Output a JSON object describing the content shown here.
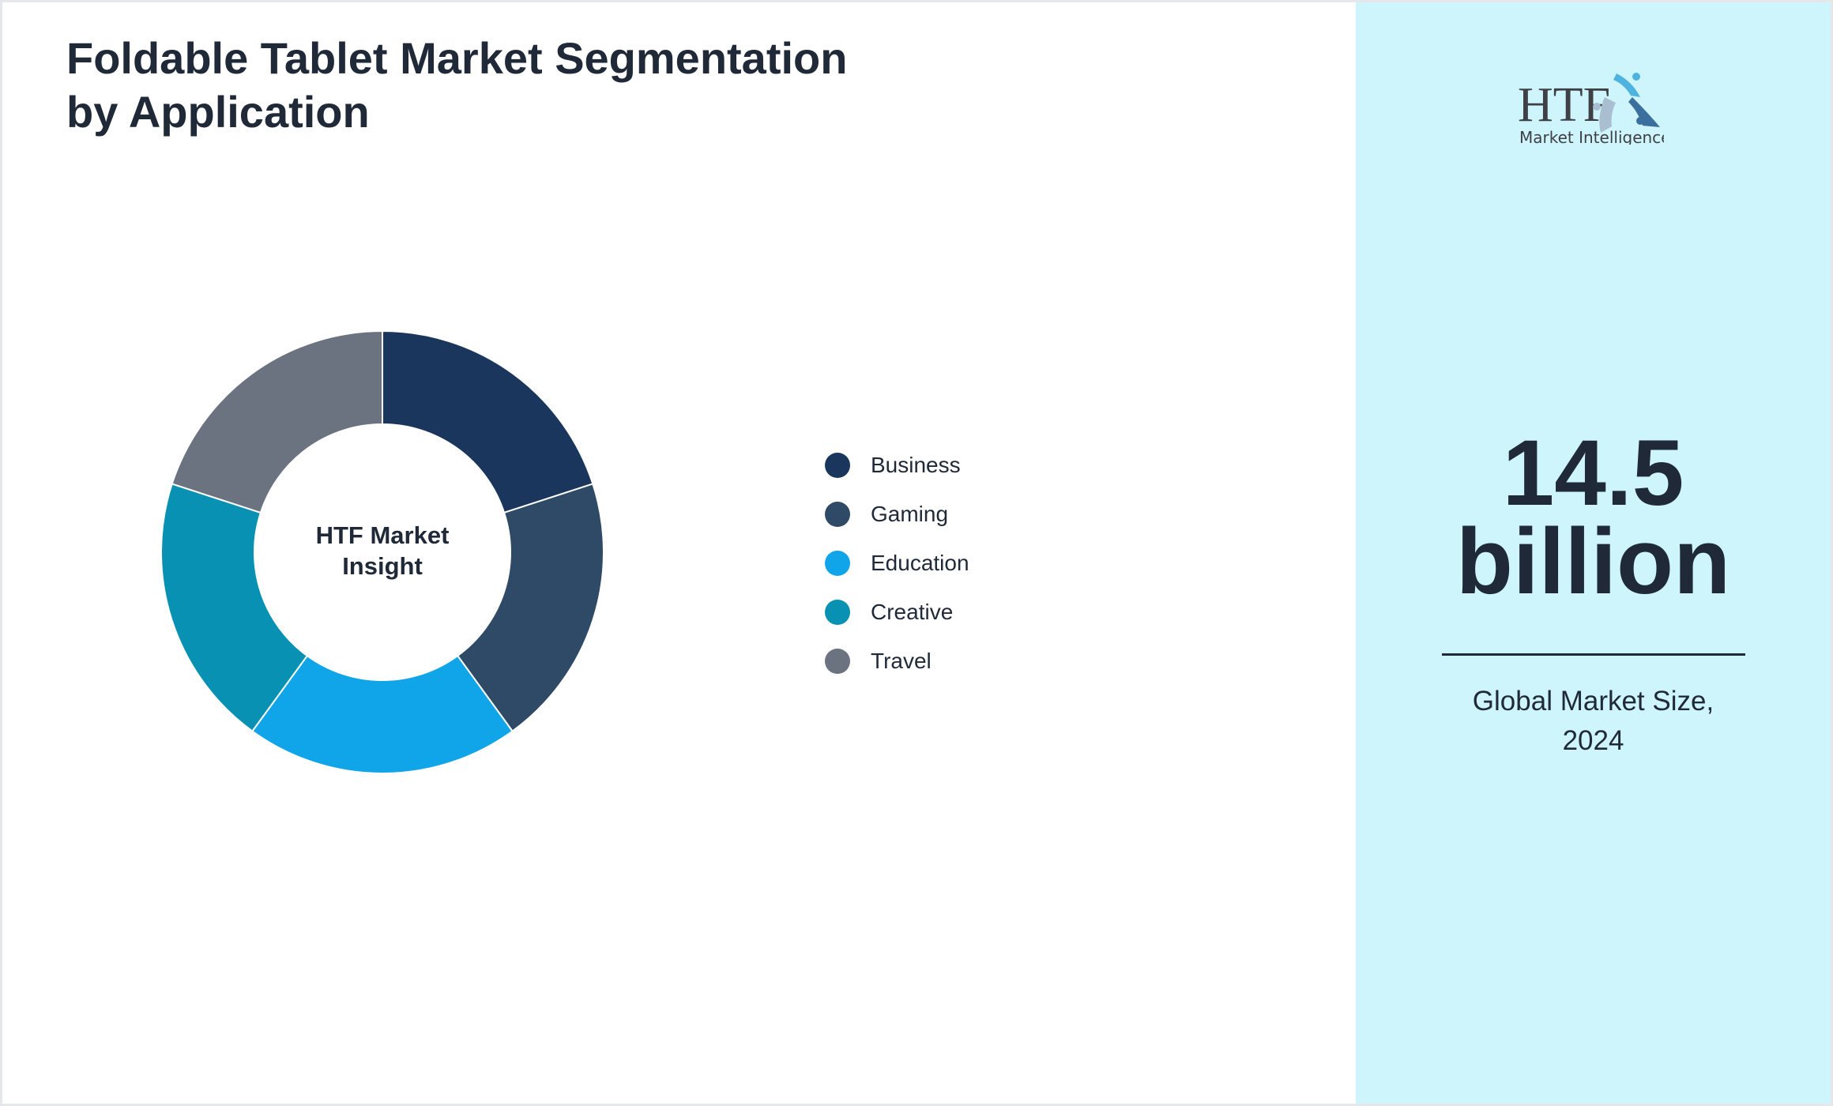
{
  "title": "Foldable Tablet Market Segmentation by Application",
  "chart_data": {
    "type": "pie",
    "style": "donut",
    "center_label": "HTF Market Insight",
    "categories": [
      "Business",
      "Gaming",
      "Education",
      "Creative",
      "Travel"
    ],
    "values": [
      20,
      20,
      20,
      20,
      20
    ],
    "colors": [
      "#1b365d",
      "#2e4a66",
      "#10a5e8",
      "#0891b2",
      "#6b7280"
    ],
    "legend_position": "right"
  },
  "panel": {
    "logo_text": "HTF",
    "logo_subtext": "Market Intelligence",
    "value_line1": "14.5",
    "value_line2": "billion",
    "caption_line1": "Global Market Size,",
    "caption_line2": "2024",
    "background": "#cff5fc"
  }
}
